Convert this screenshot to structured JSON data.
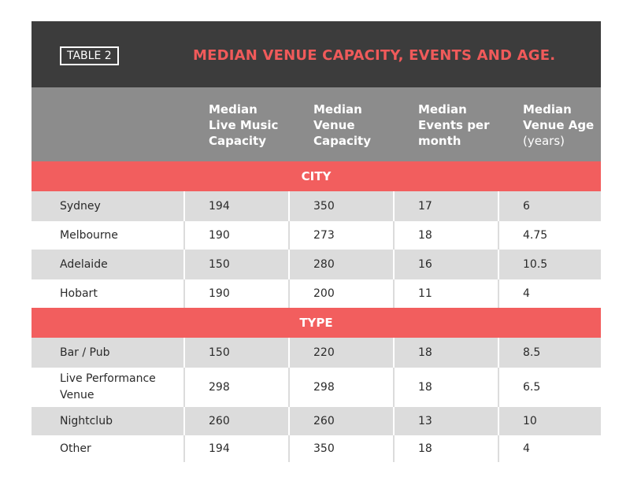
{
  "table": {
    "tag": "TABLE 2",
    "title": "MEDIAN VENUE CAPACITY, EVENTS AND AGE.",
    "headers": [
      {
        "lines": [
          "Median",
          "Live Music",
          "Capacity"
        ]
      },
      {
        "lines": [
          "Median",
          "Venue",
          "Capacity"
        ]
      },
      {
        "lines": [
          "Median",
          "Events per",
          "month"
        ]
      },
      {
        "lines": [
          "Median",
          "Venue Age"
        ],
        "note": "(years)"
      }
    ],
    "sections": [
      {
        "name": "CITY",
        "rows": [
          {
            "label": "Sydney",
            "values": [
              "194",
              "350",
              "17",
              "6"
            ]
          },
          {
            "label": "Melbourne",
            "values": [
              "190",
              "273",
              "18",
              "4.75"
            ]
          },
          {
            "label": "Adelaide",
            "values": [
              "150",
              "280",
              "16",
              "10.5"
            ]
          },
          {
            "label": "Hobart",
            "values": [
              "190",
              "200",
              "11",
              "4"
            ]
          }
        ]
      },
      {
        "name": "TYPE",
        "rows": [
          {
            "label": "Bar / Pub",
            "values": [
              "150",
              "220",
              "18",
              "8.5"
            ]
          },
          {
            "label": "Live Performance Venue",
            "values": [
              "298",
              "298",
              "18",
              "6.5"
            ]
          },
          {
            "label": "Nightclub",
            "values": [
              "260",
              "260",
              "13",
              "10"
            ]
          },
          {
            "label": "Other",
            "values": [
              "194",
              "350",
              "18",
              "4"
            ]
          }
        ]
      }
    ]
  }
}
